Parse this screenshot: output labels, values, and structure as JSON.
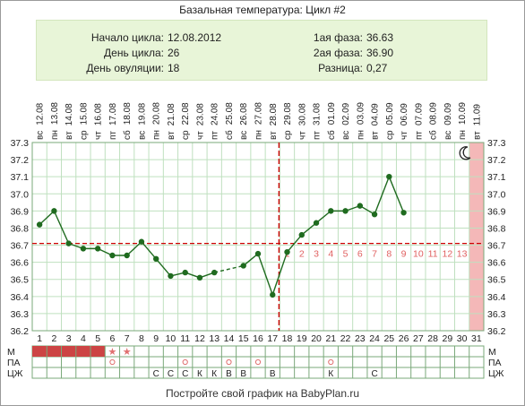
{
  "title": "Базальная температура: Цикл #2",
  "summary": {
    "cycle_start_label": "Начало цикла:",
    "cycle_start_value": "12.08.2012",
    "cycle_day_label": "День цикла:",
    "cycle_day_value": "26",
    "ovulation_day_label": "День овуляции:",
    "ovulation_day_value": "18",
    "phase1_label": "1ая фаза:",
    "phase1_value": "36.63",
    "phase2_label": "2ая фаза:",
    "phase2_value": "36.90",
    "diff_label": "Разница:",
    "diff_value": "0,27"
  },
  "footer": "Постройте свой график на BabyPlan.ru",
  "colors": {
    "line": "#1f6b1f",
    "point": "#1f6b1f",
    "grid": "#bfe0bf",
    "coverline": "#cc0000",
    "ovulation_line": "#cc0000",
    "phase2_numbers": "#e06060",
    "highlight_day": "#f4b8b8",
    "menses_bar": "#cc4444",
    "circle_marker": "#e07070",
    "summary_bg": "#e8f5d8"
  },
  "chart_data": {
    "type": "line",
    "title": "Базальная температура: Цикл #2",
    "x": [
      1,
      2,
      3,
      4,
      5,
      6,
      7,
      8,
      9,
      10,
      11,
      12,
      13,
      14,
      15,
      16,
      17,
      18,
      19,
      20,
      21,
      22,
      23,
      24,
      25,
      26,
      27,
      28,
      29,
      30,
      31
    ],
    "dates": [
      "12.08",
      "13.08",
      "14.08",
      "15.08",
      "16.08",
      "17.08",
      "18.08",
      "19.08",
      "20.08",
      "21.08",
      "22.08",
      "23.08",
      "24.08",
      "25.08",
      "26.08",
      "27.08",
      "28.08",
      "29.08",
      "30.08",
      "31.08",
      "01.09",
      "02.09",
      "03.09",
      "04.09",
      "05.09",
      "06.09",
      "07.09",
      "08.09",
      "09.09",
      "10.09",
      "11.09"
    ],
    "weekdays": [
      "вс",
      "пн",
      "вт",
      "ср",
      "чт",
      "пт",
      "сб",
      "вс",
      "пн",
      "вт",
      "ср",
      "чт",
      "пт",
      "сб",
      "вс",
      "пн",
      "вт",
      "ср",
      "чт",
      "пт",
      "сб",
      "вс",
      "пн",
      "вт",
      "ср",
      "чт",
      "пт",
      "сб",
      "вс",
      "пн",
      "вт"
    ],
    "series": [
      {
        "values": [
          36.82,
          36.9,
          36.71,
          36.68,
          36.68,
          36.64,
          36.64,
          36.72,
          36.62,
          36.52,
          36.54,
          36.51,
          36.54,
          null,
          36.58,
          36.65,
          36.41,
          36.66,
          36.76,
          36.83,
          36.9,
          36.9,
          36.93,
          36.88,
          37.1,
          36.89,
          null,
          null,
          null,
          null,
          null
        ]
      }
    ],
    "coverline": 36.71,
    "ovulation_day": 18,
    "ylim": [
      36.2,
      37.3
    ],
    "yticks": [
      "36.2",
      "36.3",
      "36.4",
      "36.5",
      "36.6",
      "36.7",
      "36.8",
      "36.9",
      "37.0",
      "37.1",
      "37.2",
      "37.3"
    ],
    "phase2_day_numbers": [
      "1",
      "2",
      "3",
      "4",
      "5",
      "6",
      "7",
      "8",
      "9",
      "10",
      "11",
      "12",
      "13"
    ],
    "highlighted_day": 31,
    "grid": true,
    "rows": {
      "m": {
        "label": "М",
        "menses_days": [
          1,
          2,
          3,
          4,
          5
        ],
        "star_days": [
          6,
          7
        ]
      },
      "pa": {
        "label": "ПА",
        "circle_days": [
          6,
          11,
          14,
          16,
          21
        ]
      },
      "cj": {
        "label": "ЦЖ",
        "marks": [
          "",
          "",
          "",
          "",
          "",
          "",
          "",
          "",
          "С",
          "С",
          "С",
          "К",
          "К",
          "В",
          "В",
          "",
          "В",
          "",
          "",
          "",
          "К",
          "",
          "",
          "С",
          "",
          "",
          "",
          "",
          "",
          "",
          ""
        ]
      }
    }
  }
}
